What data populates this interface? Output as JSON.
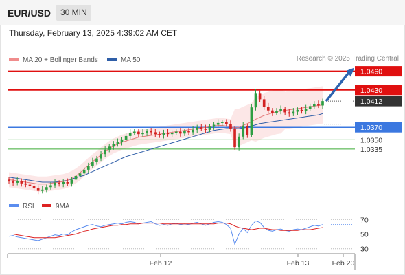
{
  "header": {
    "pair": "EUR/USD",
    "timeframe": "30 MIN"
  },
  "date_text": "Thursday, February 13, 2025 4:39:02 AM CET",
  "credit": "Research © 2025 Trading Central",
  "legend_main": [
    {
      "label": "MA 20 + Bollinger Bands",
      "color": "#f08c8c"
    },
    {
      "label": "MA 50",
      "color": "#2f5ea8"
    }
  ],
  "legend_rsi": [
    {
      "label": "RSI",
      "color": "#5b8def"
    },
    {
      "label": "9MA",
      "color": "#dd2222"
    }
  ],
  "colors": {
    "up": "#2e9e43",
    "down": "#d32222",
    "resistance": "#e01010",
    "pivot": "#3b78e0",
    "support": "#3aaa35",
    "arrow": "#2d64b0"
  },
  "chart_data": [
    {
      "type": "candlestick",
      "ylim": [
        1.025,
        1.0475
      ],
      "x_ticks": [
        "Feb 12",
        "Feb 13",
        "Feb 20"
      ],
      "price_levels": [
        {
          "value": 1.046,
          "label": "1.0460",
          "kind": "resistance"
        },
        {
          "value": 1.043,
          "label": "1.0430",
          "kind": "resistance"
        },
        {
          "value": 1.0412,
          "label": "1.0412",
          "kind": "current"
        },
        {
          "value": 1.037,
          "label": "1.0370",
          "kind": "pivot"
        },
        {
          "value": 1.035,
          "label": "1.0350",
          "kind": "support"
        },
        {
          "value": 1.0335,
          "label": "1.0335",
          "kind": "support"
        }
      ],
      "forecast": {
        "from": 1.0412,
        "to": 1.046
      },
      "close": [
        1.0283,
        1.0281,
        1.0284,
        1.028,
        1.0278,
        1.0276,
        1.0272,
        1.0268,
        1.027,
        1.0274,
        1.0277,
        1.0281,
        1.0279,
        1.0282,
        1.028,
        1.0286,
        1.0292,
        1.0296,
        1.0302,
        1.0308,
        1.0315,
        1.032,
        1.0327,
        1.0334,
        1.0339,
        1.0343,
        1.0346,
        1.035,
        1.0356,
        1.0361,
        1.0363,
        1.0359,
        1.0361,
        1.0364,
        1.0362,
        1.0359,
        1.0357,
        1.0361,
        1.0359,
        1.0361,
        1.0363,
        1.036,
        1.0364,
        1.0362,
        1.0366,
        1.037,
        1.0368,
        1.0366,
        1.0371,
        1.0374,
        1.0377,
        1.0378,
        1.0375,
        1.0368,
        1.0338,
        1.0355,
        1.0372,
        1.0358,
        1.0402,
        1.0425,
        1.0415,
        1.0403,
        1.0397,
        1.0393,
        1.0396,
        1.0399,
        1.0394,
        1.0392,
        1.0395,
        1.0398,
        1.0396,
        1.04,
        1.0404,
        1.0407,
        1.0405,
        1.0412
      ],
      "ma20": [
        1.0286,
        1.0285,
        1.0284,
        1.0283,
        1.0282,
        1.0281,
        1.028,
        1.0279,
        1.0279,
        1.0279,
        1.028,
        1.0281,
        1.0282,
        1.0283,
        1.0285,
        1.0288,
        1.0292,
        1.0297,
        1.0303,
        1.0309,
        1.0315,
        1.032,
        1.0326,
        1.0331,
        1.0336,
        1.034,
        1.0343,
        1.0346,
        1.0348,
        1.035,
        1.0352,
        1.0354,
        1.0355,
        1.0356,
        1.0357,
        1.0358,
        1.0359,
        1.036,
        1.0361,
        1.0362,
        1.0363,
        1.0364,
        1.0365,
        1.0366,
        1.0367,
        1.0368,
        1.0369,
        1.037,
        1.0371,
        1.0372,
        1.0373,
        1.0373,
        1.0372,
        1.0371,
        1.0369,
        1.037,
        1.0373,
        1.0376,
        1.0379,
        1.0383,
        1.0386,
        1.0389,
        1.0391,
        1.0393,
        1.0395,
        1.0396,
        1.0397,
        1.0398,
        1.0399,
        1.04,
        1.0401,
        1.0402,
        1.0403,
        1.0404,
        1.0405,
        1.0406
      ],
      "ma50": [
        1.029,
        1.0289,
        1.0288,
        1.0287,
        1.0286,
        1.0285,
        1.0284,
        1.0283,
        1.0282,
        1.0282,
        1.0282,
        1.0282,
        1.0283,
        1.0284,
        1.0285,
        1.0287,
        1.0289,
        1.0291,
        1.0293,
        1.0296,
        1.0299,
        1.0302,
        1.0305,
        1.0308,
        1.0311,
        1.0314,
        1.0317,
        1.032,
        1.0323,
        1.0325,
        1.0327,
        1.0329,
        1.0331,
        1.0333,
        1.0335,
        1.0337,
        1.0339,
        1.0341,
        1.0343,
        1.0345,
        1.0347,
        1.0349,
        1.0351,
        1.0353,
        1.0355,
        1.0357,
        1.0359,
        1.0361,
        1.0363,
        1.0365,
        1.0366,
        1.0367,
        1.0368,
        1.0368,
        1.0368,
        1.0368,
        1.0369,
        1.037,
        1.0372,
        1.0374,
        1.0376,
        1.0377,
        1.0378,
        1.0379,
        1.038,
        1.0381,
        1.0382,
        1.0383,
        1.0384,
        1.0385,
        1.0386,
        1.0387,
        1.0388,
        1.0389,
        1.039,
        1.0392
      ]
    },
    {
      "type": "line",
      "series_names": [
        "RSI",
        "9MA"
      ],
      "ylim": [
        25,
        75
      ],
      "y_ticks": [
        70,
        50,
        30
      ],
      "rsi": [
        47,
        48,
        46,
        45,
        44,
        43,
        42,
        41,
        43,
        45,
        47,
        49,
        48,
        50,
        49,
        53,
        56,
        58,
        60,
        62,
        63,
        61,
        60,
        62,
        63,
        64,
        65,
        64,
        66,
        67,
        66,
        64,
        65,
        66,
        67,
        64,
        62,
        63,
        62,
        64,
        65,
        63,
        64,
        63,
        65,
        66,
        64,
        62,
        64,
        66,
        67,
        66,
        63,
        58,
        36,
        50,
        58,
        52,
        62,
        68,
        66,
        59,
        55,
        54,
        56,
        57,
        55,
        54,
        56,
        57,
        56,
        58,
        60,
        62,
        61,
        63
      ],
      "ma9": [
        50,
        50,
        49,
        48,
        47,
        46,
        45,
        45,
        45,
        45,
        45,
        45,
        46,
        47,
        48,
        49,
        50,
        52,
        54,
        55,
        57,
        58,
        59,
        60,
        61,
        62,
        62,
        63,
        63,
        64,
        64,
        64,
        65,
        65,
        65,
        65,
        65,
        64,
        64,
        64,
        64,
        64,
        64,
        64,
        64,
        64,
        64,
        64,
        64,
        64,
        65,
        65,
        65,
        64,
        61,
        59,
        58,
        57,
        56,
        57,
        58,
        58,
        57,
        56,
        56,
        55,
        55,
        55,
        55,
        55,
        56,
        56,
        56,
        57,
        58,
        59
      ]
    }
  ]
}
